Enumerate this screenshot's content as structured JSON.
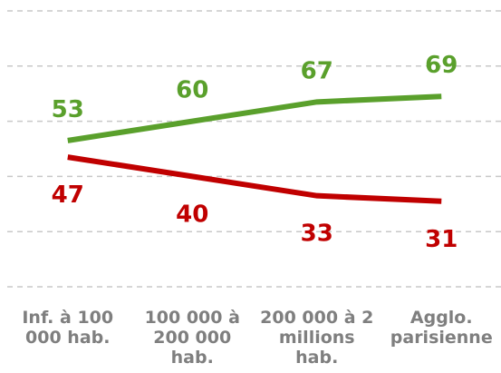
{
  "chart_data": {
    "type": "line",
    "categories": [
      "Inf. à 100 000 hab.",
      "100 000 à 200 000 hab.",
      "200 000 à 2 millions hab.",
      "Agglo. parisienne"
    ],
    "series": [
      {
        "color": "#5aa02c",
        "values": [
          53,
          60,
          67,
          69
        ]
      },
      {
        "color": "#c00000",
        "values": [
          47,
          40,
          33,
          31
        ]
      }
    ],
    "ylim": [
      0,
      100
    ],
    "yticks": [
      0,
      20,
      40,
      60,
      80,
      100
    ],
    "grid": true
  }
}
